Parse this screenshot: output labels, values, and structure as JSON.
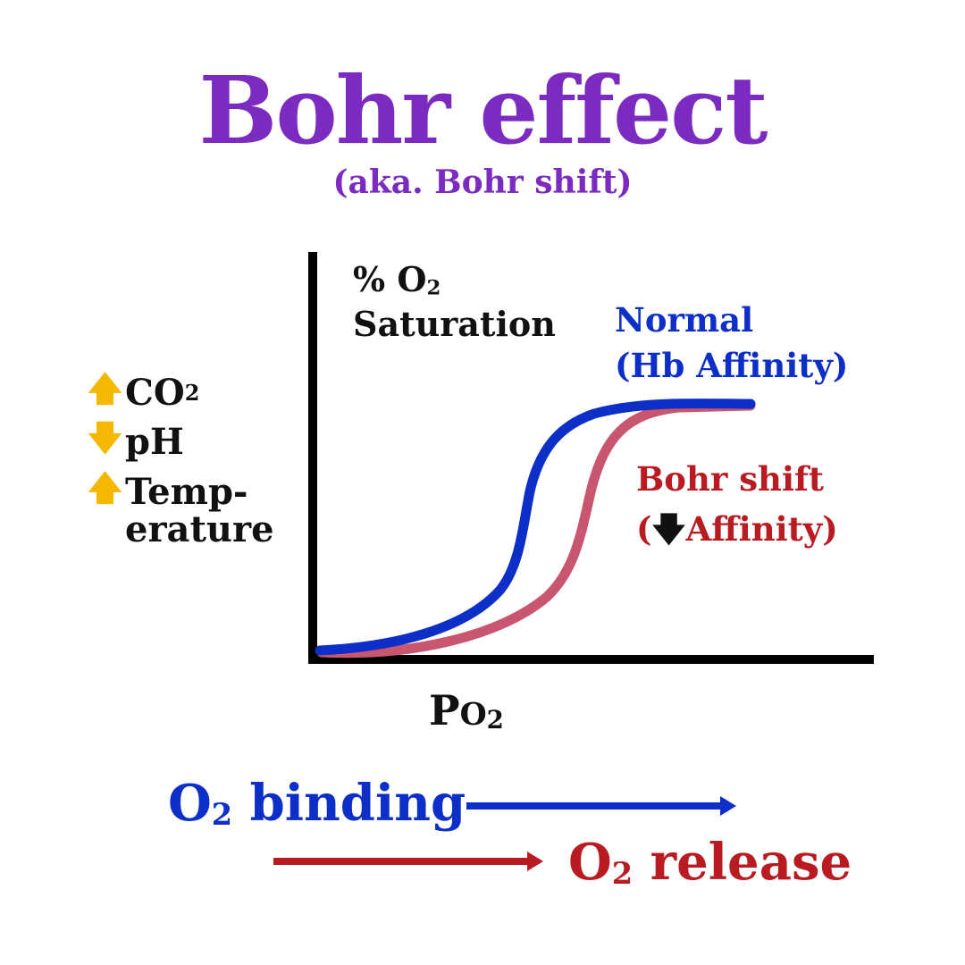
{
  "title": "Bohr effect",
  "subtitle": "(aka. Bohr shift)",
  "axes": {
    "y_label_line1": "% O",
    "y_label_line1_sub": "2",
    "y_label_line2": "Saturation",
    "x_label": "P",
    "x_label_sub": "O",
    "x_label_sub2": "2"
  },
  "curves": {
    "normal": {
      "label_line1": "Normal",
      "label_line2": "(Hb Affinity)",
      "color": "#0d2ec7"
    },
    "shifted": {
      "label_line1": "Bohr shift",
      "label_line2_open": "(",
      "label_line2_arrow": "🡇",
      "label_line2_rest": "Affinity)",
      "color": "#c8566f"
    }
  },
  "factors": [
    {
      "arrow": "🡅",
      "text": "CO",
      "sub": "2"
    },
    {
      "arrow": "🡇",
      "text": "pH",
      "sub": ""
    },
    {
      "arrow": "🡅",
      "text": "Temp-",
      "sub": ""
    }
  ],
  "factor_continuation": "erature",
  "colors": {
    "title": "#7b2bbf",
    "normal": "#0d2ec7",
    "shifted": "#c8566f",
    "release": "#b81c22",
    "factor_arrow": "#f5b800",
    "axis": "#000000"
  },
  "bottom": {
    "binding_text": "O",
    "binding_sub": "2",
    "binding_rest": " binding",
    "release_text": "O",
    "release_sub": "2",
    "release_rest": " release"
  }
}
